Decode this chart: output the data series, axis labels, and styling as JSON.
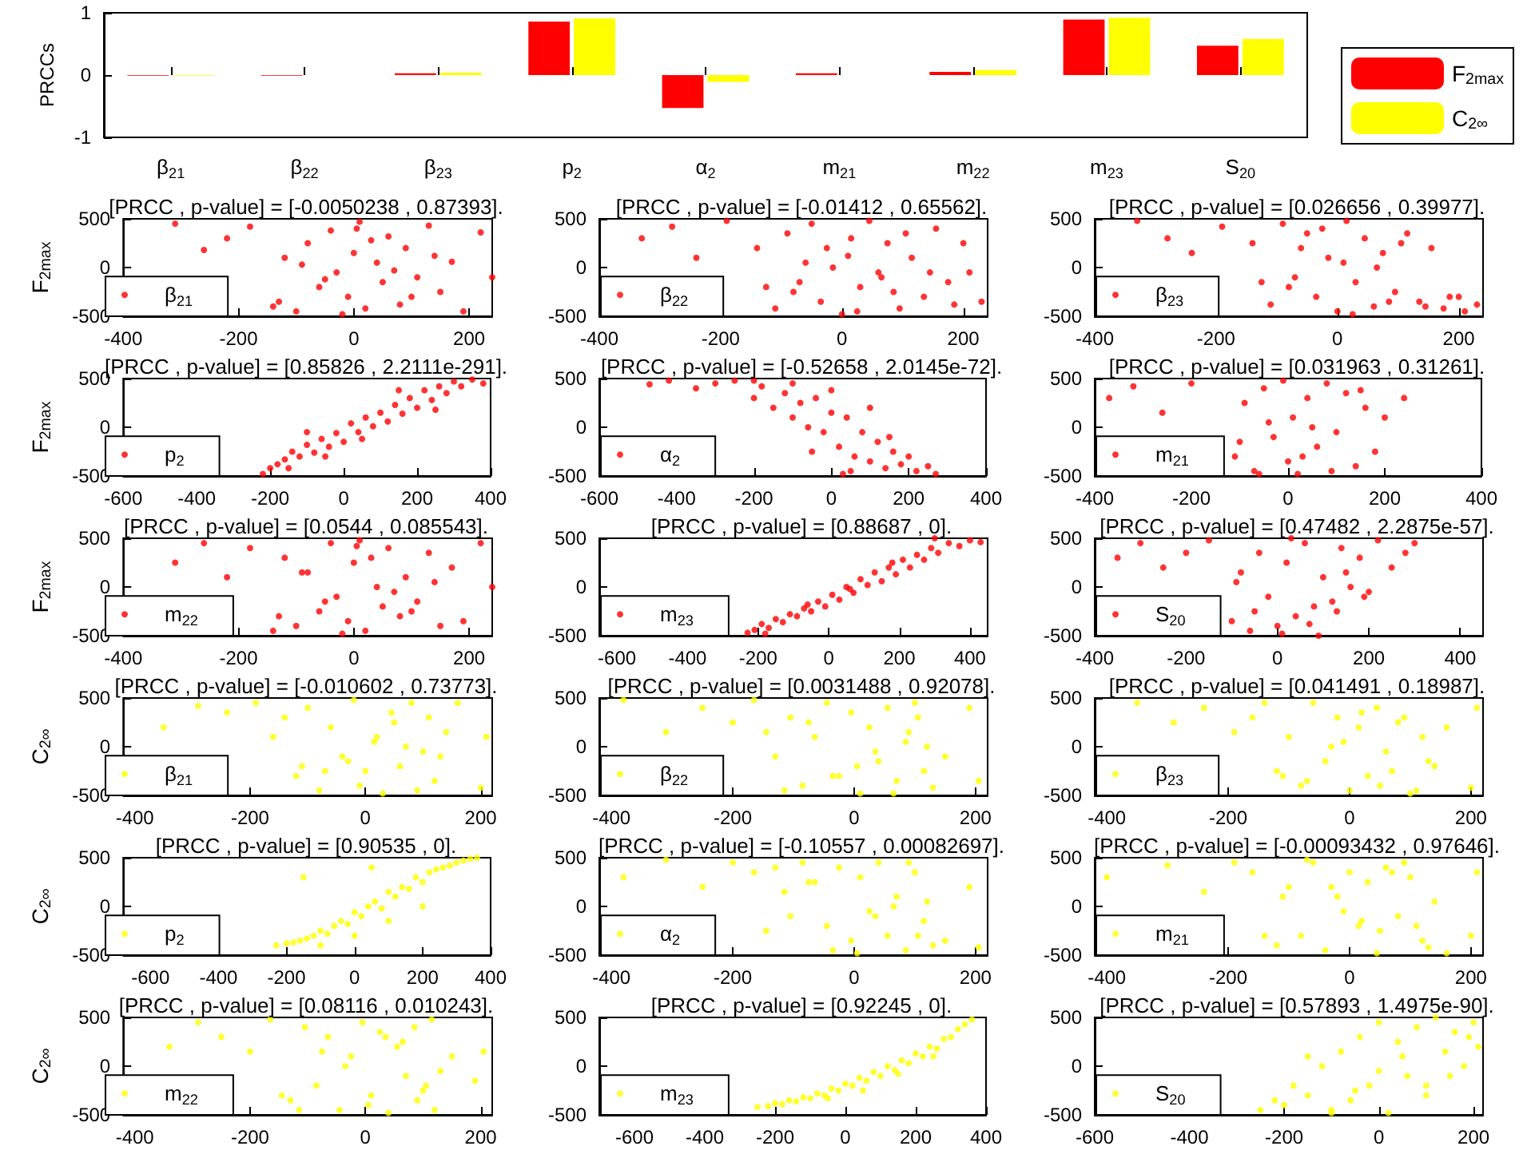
{
  "chart_data": [
    {
      "type": "bar",
      "ylabel": "PRCCs",
      "categories": [
        "β$_{21}$",
        "β$_{22}$",
        "β$_{23}$",
        "p$_{2}$",
        "α$_{2}$",
        "m$_{21}$",
        "m$_{22}$",
        "m$_{23}$",
        "S$_{20}$"
      ],
      "ylim": [
        -1,
        1
      ],
      "yticks": [
        -1,
        0,
        1
      ],
      "legend": "right",
      "series": [
        {
          "name": "F$_{2max}$",
          "color": "#ff0000",
          "values": [
            -0.01,
            -0.01,
            0.03,
            0.86,
            -0.53,
            0.03,
            0.05,
            0.89,
            0.47
          ]
        },
        {
          "name": "C$_{2∞}$",
          "color": "#ffff00",
          "values": [
            -0.01,
            0,
            0.04,
            0.91,
            -0.11,
            0,
            0.08,
            0.92,
            0.58
          ]
        }
      ]
    },
    {
      "type": "scatter",
      "title": "[PRCC , p-value] = [-0.0050238 , 0.87393].",
      "ylabel": "F$_{2max}$",
      "xlim": [
        -400,
        240
      ],
      "xticks": [
        -400,
        -200,
        0,
        200
      ],
      "ylim": [
        -500,
        500
      ],
      "yticks": [
        -500,
        0,
        500
      ],
      "legend": "bottom left",
      "marker": "circle",
      "series": [
        {
          "name": "β$_{21}$",
          "color": "#ff0000",
          "x": [
            -310,
            -260,
            -220,
            -180,
            -130,
            -120,
            -100,
            -80,
            -60,
            -40,
            -30,
            -10,
            0,
            10,
            20,
            40,
            50,
            60,
            80,
            90,
            110,
            130,
            150,
            170,
            190,
            220,
            240,
            -140,
            -90,
            -20,
            30,
            70,
            100,
            140,
            -50,
            5
          ],
          "values": [
            450,
            180,
            300,
            420,
            -350,
            100,
            -450,
            250,
            -200,
            380,
            -50,
            -300,
            150,
            470,
            -420,
            50,
            -150,
            320,
            -380,
            200,
            -100,
            430,
            -250,
            60,
            -450,
            360,
            -100,
            -400,
            30,
            -480,
            280,
            -30,
            -300,
            120,
            -120,
            400
          ]
        }
      ]
    },
    {
      "type": "scatter",
      "title": "[PRCC , p-value] = [-0.01412 , 0.65562].",
      "xlim": [
        -400,
        240
      ],
      "xticks": [
        -400,
        -200,
        0,
        200
      ],
      "ylim": [
        -500,
        500
      ],
      "yticks": [
        -500,
        0,
        500
      ],
      "legend": "bottom left",
      "marker": "circle",
      "series": [
        {
          "name": "β$_{22}$",
          "color": "#ff0000",
          "x": [
            -330,
            -280,
            -240,
            -190,
            -140,
            -110,
            -90,
            -70,
            -50,
            -35,
            -15,
            0,
            15,
            30,
            45,
            60,
            75,
            95,
            115,
            135,
            155,
            175,
            200,
            230,
            -125,
            -80,
            -25,
            25,
            65,
            105,
            145,
            185,
            -60,
            10,
            85,
            210
          ],
          "values": [
            300,
            420,
            100,
            480,
            200,
            -420,
            350,
            -150,
            450,
            -350,
            0,
            -480,
            300,
            -200,
            480,
            -50,
            250,
            -420,
            100,
            -300,
            400,
            -150,
            250,
            -350,
            -200,
            -250,
            200,
            -450,
            -100,
            350,
            -50,
            -380,
            50,
            120,
            -250,
            -50
          ]
        }
      ]
    },
    {
      "type": "scatter",
      "title": "[PRCC , p-value] = [0.026656 , 0.39977].",
      "xlim": [
        -400,
        240
      ],
      "xticks": [
        -400,
        -200,
        0,
        200
      ],
      "ylim": [
        -500,
        500
      ],
      "yticks": [
        -500,
        0,
        500
      ],
      "legend": "bottom left",
      "marker": "circle",
      "series": [
        {
          "name": "β$_{23}$",
          "color": "#ff0000",
          "x": [
            -330,
            -280,
            -240,
            -190,
            -140,
            -110,
            -90,
            -70,
            -50,
            -35,
            -15,
            0,
            15,
            30,
            45,
            60,
            75,
            95,
            115,
            135,
            155,
            175,
            200,
            230,
            -125,
            -80,
            -25,
            25,
            65,
            105,
            145,
            185,
            -60,
            10,
            85,
            210
          ],
          "values": [
            480,
            300,
            150,
            420,
            250,
            -380,
            450,
            -100,
            350,
            -300,
            100,
            -450,
            480,
            -150,
            300,
            -400,
            150,
            -250,
            350,
            -350,
            200,
            -420,
            -300,
            -380,
            -150,
            -200,
            400,
            -480,
            0,
            250,
            -400,
            -300,
            200,
            50,
            -350,
            -450
          ]
        }
      ]
    },
    {
      "type": "scatter",
      "title": "[PRCC , p-value] = [0.85826 , 2.2111e-291].",
      "ylabel": "F$_{2max}$",
      "xlim": [
        -600,
        400
      ],
      "xticks": [
        -600,
        -400,
        -200,
        0,
        200,
        400
      ],
      "ylim": [
        -500,
        500
      ],
      "yticks": [
        -500,
        0,
        500
      ],
      "legend": "bottom left",
      "marker": "circle",
      "series": [
        {
          "name": "p$_{2}$",
          "color": "#ff0000",
          "x": [
            -220,
            -200,
            -180,
            -160,
            -140,
            -120,
            -100,
            -80,
            -60,
            -40,
            -20,
            0,
            20,
            40,
            60,
            80,
            100,
            120,
            140,
            160,
            180,
            200,
            220,
            240,
            260,
            280,
            300,
            320,
            350,
            380,
            -150,
            -50,
            50,
            150,
            250,
            -100
          ],
          "values": [
            -480,
            -420,
            -380,
            -330,
            -250,
            -300,
            -180,
            -260,
            -120,
            -200,
            -60,
            -150,
            40,
            -50,
            100,
            10,
            150,
            60,
            230,
            140,
            300,
            200,
            380,
            280,
            420,
            350,
            470,
            420,
            490,
            450,
            -420,
            -300,
            -120,
            380,
            180,
            -50
          ]
        }
      ]
    },
    {
      "type": "scatter",
      "title": "[PRCC , p-value] = [-0.52658 , 2.0145e-72].",
      "xlim": [
        -600,
        400
      ],
      "xticks": [
        -600,
        -400,
        -200,
        0,
        200,
        400
      ],
      "ylim": [
        -500,
        500
      ],
      "yticks": [
        -500,
        0,
        500
      ],
      "legend": "bottom left",
      "marker": "circle",
      "series": [
        {
          "name": "α$_{2}$",
          "color": "#ff0000",
          "x": [
            -470,
            -420,
            -350,
            -300,
            -250,
            -200,
            -180,
            -150,
            -120,
            -100,
            -80,
            -60,
            -40,
            -20,
            0,
            20,
            40,
            60,
            80,
            100,
            120,
            140,
            160,
            180,
            200,
            220,
            250,
            270,
            -100,
            0,
            100,
            -200,
            50,
            150,
            -50,
            30
          ],
          "values": [
            440,
            480,
            400,
            450,
            480,
            300,
            420,
            200,
            350,
            100,
            250,
            0,
            300,
            -50,
            150,
            -200,
            100,
            -300,
            -50,
            -350,
            -150,
            -420,
            -250,
            -380,
            -300,
            -450,
            -400,
            -480,
            450,
            380,
            200,
            480,
            -450,
            -100,
            -250,
            -480
          ]
        }
      ]
    },
    {
      "type": "scatter",
      "title": "[PRCC , p-value] = [0.031963 , 0.31261].",
      "xlim": [
        -400,
        400
      ],
      "xticks": [
        -400,
        -200,
        0,
        200,
        400
      ],
      "ylim": [
        -500,
        500
      ],
      "yticks": [
        -500,
        0,
        500
      ],
      "legend": "bottom left",
      "marker": "circle",
      "series": [
        {
          "name": "m$_{21}$",
          "color": "#ff0000",
          "x": [
            -370,
            -320,
            -260,
            -200,
            -110,
            -90,
            -70,
            -50,
            -30,
            -10,
            0,
            10,
            20,
            40,
            60,
            80,
            100,
            120,
            140,
            160,
            180,
            200,
            240,
            -100,
            -40,
            30,
            90,
            150,
            -60,
            50
          ],
          "values": [
            300,
            420,
            150,
            450,
            -300,
            250,
            -450,
            400,
            -100,
            480,
            -350,
            100,
            -480,
            300,
            -200,
            450,
            -50,
            350,
            -400,
            200,
            -250,
            100,
            300,
            -150,
            50,
            -300,
            -450,
            380,
            -480,
            0
          ]
        }
      ]
    },
    {
      "type": "scatter",
      "title": "[PRCC , p-value] = [0.0544 , 0.085543].",
      "ylabel": "F$_{2max}$",
      "xlim": [
        -400,
        240
      ],
      "xticks": [
        -400,
        -200,
        0,
        200
      ],
      "ylim": [
        -500,
        500
      ],
      "yticks": [
        -500,
        0,
        500
      ],
      "legend": "bottom left",
      "marker": "circle",
      "series": [
        {
          "name": "m$_{22}$",
          "color": "#ff0000",
          "x": [
            -310,
            -260,
            -220,
            -180,
            -130,
            -120,
            -100,
            -80,
            -60,
            -40,
            -30,
            -10,
            0,
            10,
            20,
            40,
            50,
            60,
            80,
            90,
            110,
            130,
            150,
            170,
            190,
            220,
            240,
            -140,
            -90,
            -20,
            30,
            70,
            100,
            140,
            -50,
            5
          ],
          "values": [
            250,
            450,
            100,
            400,
            -300,
            300,
            -400,
            150,
            -250,
            450,
            -100,
            -350,
            250,
            480,
            -450,
            0,
            -200,
            400,
            -300,
            100,
            -150,
            350,
            -400,
            200,
            -350,
            450,
            0,
            -450,
            150,
            -480,
            300,
            -50,
            -250,
            50,
            -150,
            420
          ]
        }
      ]
    },
    {
      "type": "scatter",
      "title": "[PRCC , p-value] = [0.88687 , 0].",
      "xlim": [
        -650,
        450
      ],
      "xticks": [
        -600,
        -400,
        -200,
        0,
        200,
        400
      ],
      "ylim": [
        -500,
        500
      ],
      "yticks": [
        -500,
        0,
        500
      ],
      "legend": "bottom left",
      "marker": "circle",
      "series": [
        {
          "name": "m$_{23}$",
          "color": "#ff0000",
          "x": [
            -230,
            -210,
            -190,
            -170,
            -150,
            -130,
            -110,
            -90,
            -70,
            -50,
            -30,
            -10,
            10,
            30,
            50,
            70,
            90,
            110,
            130,
            150,
            170,
            190,
            210,
            230,
            250,
            270,
            290,
            310,
            340,
            370,
            400,
            430,
            -180,
            -60,
            60,
            180,
            300
          ],
          "values": [
            -470,
            -440,
            -380,
            -420,
            -330,
            -360,
            -280,
            -300,
            -220,
            -250,
            -150,
            -200,
            -80,
            -130,
            0,
            -60,
            80,
            20,
            150,
            60,
            200,
            130,
            280,
            200,
            330,
            280,
            400,
            350,
            450,
            420,
            480,
            460,
            -480,
            -180,
            -20,
            250,
            500
          ]
        }
      ]
    },
    {
      "type": "scatter",
      "title": "[PRCC , p-value] = [0.47482 , 2.2875e-57].",
      "xlim": [
        -400,
        450
      ],
      "xticks": [
        -400,
        -200,
        0,
        200,
        400
      ],
      "ylim": [
        -500,
        500
      ],
      "yticks": [
        -500,
        0,
        500
      ],
      "legend": "bottom left",
      "marker": "circle",
      "series": [
        {
          "name": "S$_{20}$",
          "color": "#ff0000",
          "x": [
            -350,
            -300,
            -250,
            -200,
            -150,
            -100,
            -80,
            -60,
            -40,
            -20,
            0,
            20,
            40,
            60,
            80,
            100,
            120,
            140,
            160,
            180,
            200,
            220,
            250,
            280,
            300,
            -50,
            10,
            70,
            130,
            190,
            -90,
            30,
            90,
            150
          ],
          "values": [
            300,
            450,
            200,
            350,
            480,
            -350,
            150,
            -450,
            350,
            -100,
            -400,
            250,
            -300,
            450,
            -200,
            100,
            -150,
            400,
            0,
            300,
            -50,
            480,
            200,
            350,
            450,
            -250,
            -480,
            -380,
            -250,
            -100,
            50,
            500,
            -500,
            150
          ]
        }
      ]
    },
    {
      "type": "scatter",
      "title": "[PRCC , p-value] = [-0.010602 , 0.73773].",
      "ylabel": "C$_{2∞}$",
      "xlim": [
        -420,
        220
      ],
      "xticks": [
        -400,
        -200,
        0,
        200
      ],
      "ylim": [
        -500,
        500
      ],
      "yticks": [
        -500,
        0,
        500
      ],
      "legend": "bottom left",
      "marker": "circle",
      "series": [
        {
          "name": "β$_{21}$",
          "color": "#ffff00",
          "x": [
            -350,
            -290,
            -240,
            -190,
            -160,
            -120,
            -100,
            -80,
            -60,
            -40,
            -20,
            0,
            15,
            30,
            45,
            60,
            80,
            100,
            120,
            140,
            -140,
            -70,
            -10,
            50,
            90,
            130,
            -110,
            20,
            70,
            160,
            200,
            210,
            -30,
            110
          ],
          "values": [
            200,
            420,
            350,
            450,
            100,
            -300,
            400,
            -450,
            200,
            -100,
            480,
            -250,
            50,
            -480,
            350,
            -200,
            450,
            -50,
            -350,
            150,
            300,
            -250,
            -400,
            250,
            -450,
            -100,
            -200,
            100,
            0,
            450,
            -420,
            100,
            -150,
            300
          ]
        }
      ]
    },
    {
      "type": "scatter",
      "title": "[PRCC , p-value] = [0.0031488 , 0.92078].",
      "xlim": [
        -420,
        220
      ],
      "xticks": [
        -400,
        -200,
        0,
        200
      ],
      "ylim": [
        -500,
        500
      ],
      "yticks": [
        -500,
        0,
        500
      ],
      "legend": "bottom left",
      "marker": "circle",
      "series": [
        {
          "name": "β$_{22}$",
          "color": "#ffff00",
          "x": [
            -380,
            -310,
            -250,
            -200,
            -165,
            -130,
            -105,
            -85,
            -65,
            -45,
            -25,
            -5,
            10,
            25,
            40,
            55,
            70,
            85,
            100,
            115,
            130,
            -145,
            -75,
            5,
            65,
            105,
            -115,
            35,
            90,
            150,
            190,
            205,
            -35,
            120
          ],
          "values": [
            480,
            150,
            400,
            250,
            480,
            -100,
            300,
            -400,
            100,
            450,
            -300,
            350,
            -480,
            200,
            -150,
            400,
            -350,
            50,
            450,
            -250,
            -420,
            150,
            250,
            -200,
            -480,
            300,
            -450,
            -50,
            150,
            -100,
            400,
            -350,
            -300,
            0
          ]
        }
      ]
    },
    {
      "type": "scatter",
      "title": "[PRCC , p-value] = [0.041491 , 0.18987].",
      "xlim": [
        -420,
        220
      ],
      "xticks": [
        -400,
        -200,
        0,
        200
      ],
      "ylim": [
        -500,
        500
      ],
      "yticks": [
        -500,
        0,
        500
      ],
      "legend": "bottom left",
      "marker": "circle",
      "series": [
        {
          "name": "β$_{23}$",
          "color": "#ffff00",
          "x": [
            -350,
            -290,
            -240,
            -190,
            -160,
            -120,
            -100,
            -80,
            -60,
            -40,
            -20,
            0,
            15,
            30,
            45,
            60,
            80,
            100,
            120,
            140,
            -140,
            -70,
            -10,
            50,
            90,
            130,
            -110,
            20,
            70,
            160,
            200,
            210,
            -30,
            110
          ],
          "values": [
            450,
            250,
            400,
            150,
            300,
            -250,
            100,
            -400,
            450,
            -150,
            300,
            -450,
            200,
            -300,
            400,
            -50,
            250,
            -480,
            100,
            -200,
            450,
            -350,
            50,
            -400,
            300,
            -150,
            -300,
            350,
            -250,
            200,
            -420,
            400,
            0,
            -450
          ]
        }
      ]
    },
    {
      "type": "scatter",
      "title": "[PRCC , p-value] = [0.90535 , 0].",
      "ylabel": "C$_{2∞}$",
      "xlim": [
        -680,
        400
      ],
      "xticks": [
        -600,
        -400,
        -200,
        0,
        200,
        400
      ],
      "ylim": [
        -500,
        500
      ],
      "yticks": [
        -500,
        0,
        500
      ],
      "legend": "bottom left",
      "marker": "circle",
      "series": [
        {
          "name": "p$_{2}$",
          "color": "#ffff00",
          "x": [
            -230,
            -200,
            -180,
            -160,
            -140,
            -120,
            -100,
            -80,
            -60,
            -40,
            -20,
            0,
            20,
            40,
            60,
            80,
            100,
            120,
            140,
            160,
            180,
            200,
            220,
            240,
            260,
            280,
            300,
            320,
            340,
            360,
            -100,
            0,
            100,
            200,
            -150,
            50
          ],
          "values": [
            -400,
            -380,
            -370,
            -350,
            -330,
            -300,
            -250,
            -280,
            -200,
            -150,
            -180,
            -60,
            -100,
            0,
            50,
            -20,
            150,
            100,
            200,
            180,
            300,
            250,
            350,
            380,
            400,
            420,
            450,
            470,
            490,
            500,
            -400,
            -300,
            -150,
            0,
            300,
            400
          ]
        }
      ]
    },
    {
      "type": "scatter",
      "title": "[PRCC , p-value] = [-0.10557 , 0.00082697].",
      "xlim": [
        -420,
        220
      ],
      "xticks": [
        -400,
        -200,
        0,
        200
      ],
      "ylim": [
        -500,
        500
      ],
      "yticks": [
        -500,
        0,
        500
      ],
      "legend": "bottom left",
      "marker": "circle",
      "series": [
        {
          "name": "α$_{2}$",
          "color": "#ffff00",
          "x": [
            -380,
            -310,
            -250,
            -200,
            -165,
            -130,
            -105,
            -85,
            -65,
            -45,
            -25,
            -5,
            10,
            25,
            40,
            55,
            70,
            85,
            100,
            115,
            130,
            -145,
            -75,
            5,
            65,
            105,
            -115,
            35,
            90,
            150,
            190,
            205,
            -35,
            120
          ],
          "values": [
            300,
            480,
            200,
            450,
            350,
            400,
            -100,
            450,
            250,
            -200,
            400,
            -350,
            300,
            -50,
            450,
            -300,
            100,
            -450,
            350,
            -150,
            -400,
            -250,
            250,
            -480,
            0,
            -300,
            150,
            -100,
            450,
            -350,
            200,
            -420,
            -450,
            50
          ]
        }
      ]
    },
    {
      "type": "scatter",
      "title": "[PRCC , p-value] = [-0.00093432 , 0.97646].",
      "xlim": [
        -420,
        220
      ],
      "xticks": [
        -400,
        -200,
        0,
        200
      ],
      "ylim": [
        -500,
        500
      ],
      "yticks": [
        -500,
        0,
        500
      ],
      "legend": "bottom left",
      "marker": "circle",
      "series": [
        {
          "name": "m$_{21}$",
          "color": "#ffff00",
          "x": [
            -400,
            -300,
            -240,
            -190,
            -160,
            -120,
            -100,
            -80,
            -60,
            -40,
            -20,
            0,
            15,
            30,
            45,
            60,
            80,
            100,
            120,
            140,
            -140,
            -70,
            -10,
            50,
            90,
            130,
            -110,
            20,
            70,
            160,
            200,
            210,
            -30,
            110
          ],
          "values": [
            300,
            420,
            150,
            450,
            350,
            -400,
            200,
            -300,
            450,
            -450,
            100,
            350,
            -200,
            250,
            -480,
            400,
            -100,
            300,
            -350,
            50,
            -300,
            480,
            -50,
            -250,
            450,
            -420,
            100,
            -150,
            350,
            -480,
            -300,
            350,
            200,
            -200
          ]
        }
      ]
    },
    {
      "type": "scatter",
      "title": "[PRCC , p-value] = [0.08116 , 0.010243].",
      "ylabel": "C$_{2∞}$",
      "xlim": [
        -420,
        220
      ],
      "xticks": [
        -400,
        -200,
        0,
        200
      ],
      "ylim": [
        -500,
        500
      ],
      "yticks": [
        -500,
        0,
        500
      ],
      "legend": "bottom left",
      "marker": "circle",
      "series": [
        {
          "name": "m$_{22}$",
          "color": "#ffff00",
          "x": [
            -340,
            -290,
            -250,
            -200,
            -165,
            -130,
            -105,
            -85,
            -65,
            -45,
            -25,
            -5,
            10,
            25,
            40,
            55,
            70,
            85,
            100,
            115,
            130,
            -145,
            -75,
            5,
            65,
            105,
            -115,
            35,
            90,
            150,
            190,
            205,
            -35,
            120
          ],
          "values": [
            200,
            450,
            300,
            150,
            480,
            -350,
            400,
            -200,
            300,
            -450,
            100,
            450,
            -300,
            350,
            -480,
            200,
            -100,
            400,
            -250,
            480,
            -50,
            -300,
            150,
            -400,
            250,
            -200,
            -450,
            300,
            -350,
            100,
            -150,
            150,
            0,
            -450
          ]
        }
      ]
    },
    {
      "type": "scatter",
      "title": "[PRCC , p-value] = [0.92245 , 0].",
      "xlim": [
        -700,
        400
      ],
      "xticks": [
        -600,
        -400,
        -200,
        0,
        200,
        400
      ],
      "ylim": [
        -500,
        500
      ],
      "yticks": [
        -500,
        0,
        500
      ],
      "legend": "bottom left",
      "marker": "circle",
      "series": [
        {
          "name": "m$_{23}$",
          "color": "#ffff00",
          "x": [
            -250,
            -220,
            -200,
            -180,
            -160,
            -140,
            -120,
            -100,
            -80,
            -60,
            -40,
            -20,
            0,
            20,
            40,
            60,
            80,
            100,
            120,
            140,
            160,
            180,
            200,
            220,
            240,
            260,
            280,
            300,
            320,
            340,
            360,
            -50,
            50,
            150,
            250
          ],
          "values": [
            -420,
            -410,
            -380,
            -390,
            -350,
            -360,
            -320,
            -330,
            -280,
            -300,
            -230,
            -250,
            -180,
            -200,
            -120,
            -150,
            -60,
            -100,
            0,
            -40,
            60,
            30,
            130,
            100,
            200,
            180,
            280,
            300,
            380,
            430,
            480,
            -330,
            -250,
            -80,
            100
          ]
        }
      ]
    },
    {
      "type": "scatter",
      "title": "[PRCC , p-value] = [0.57893 , 1.4975e-90].",
      "xlim": [
        -600,
        220
      ],
      "xticks": [
        -600,
        -400,
        -200,
        0,
        200
      ],
      "ylim": [
        -500,
        500
      ],
      "yticks": [
        -500,
        0,
        500
      ],
      "legend": "bottom left",
      "marker": "circle",
      "series": [
        {
          "name": "S$_{20}$",
          "color": "#ffff00",
          "x": [
            -250,
            -220,
            -200,
            -180,
            -150,
            -120,
            -100,
            -80,
            -60,
            -40,
            -20,
            0,
            20,
            40,
            60,
            80,
            100,
            120,
            140,
            160,
            180,
            200,
            210,
            -100,
            0,
            100,
            150,
            50,
            -50,
            190,
            -150
          ],
          "values": [
            -450,
            -350,
            -400,
            -200,
            -300,
            0,
            -450,
            150,
            -350,
            300,
            -200,
            450,
            -480,
            250,
            -100,
            400,
            -300,
            500,
            150,
            350,
            0,
            450,
            200,
            -480,
            -50,
            -200,
            -100,
            100,
            -250,
            300,
            100
          ]
        }
      ]
    }
  ]
}
